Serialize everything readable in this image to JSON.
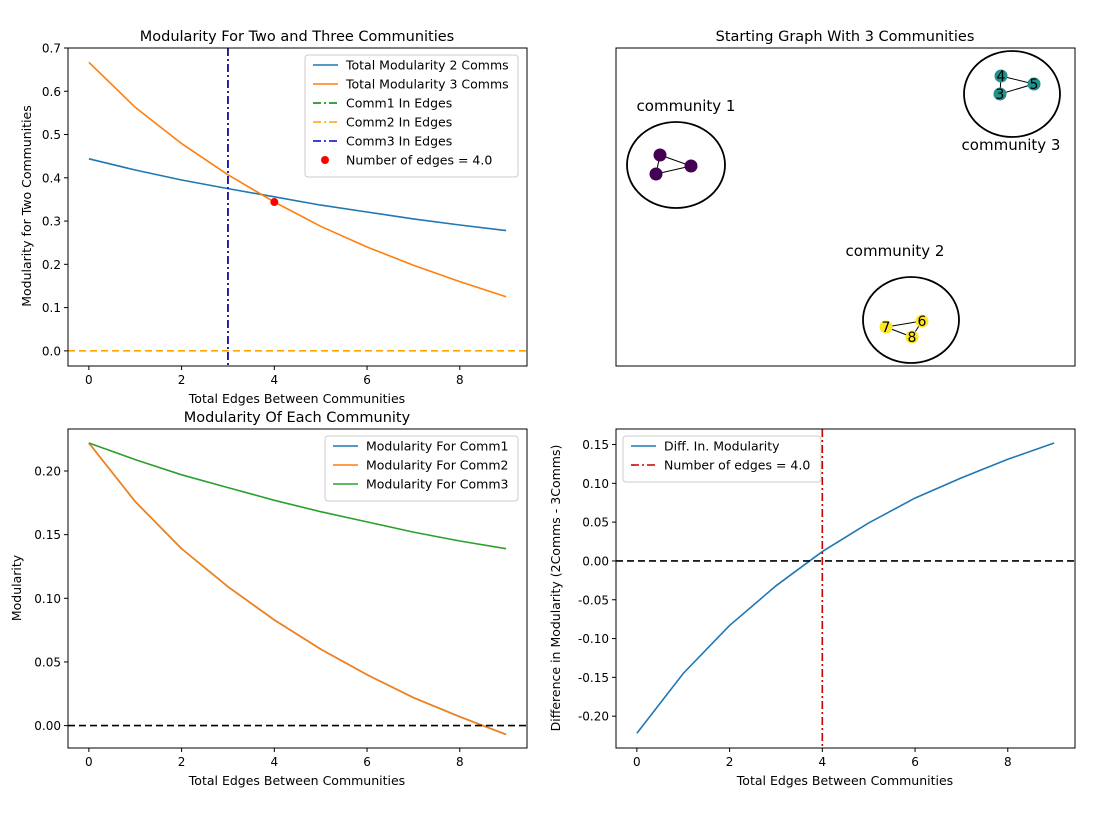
{
  "chart_data": [
    {
      "id": "p1",
      "type": "line",
      "title": "Modularity For Two and Three Communities",
      "xlabel": "Total Edges Between Communities",
      "ylabel": "Modularity for Two Communities",
      "xlim": [
        -0.45,
        9.45
      ],
      "ylim": [
        -0.035,
        0.7
      ],
      "xticks": [
        0,
        2,
        4,
        6,
        8
      ],
      "yticks": [
        0.0,
        0.1,
        0.2,
        0.3,
        0.4,
        0.5,
        0.6,
        0.7
      ],
      "ytick_decimals": 1,
      "legend_position": "upper-right",
      "series": [
        {
          "name": "Total Modularity 2 Comms",
          "color": "#1f77b4",
          "dash": "solid",
          "x": [
            0,
            1,
            2,
            3,
            4,
            5,
            6,
            7,
            8,
            9
          ],
          "y": [
            0.444,
            0.418,
            0.395,
            0.375,
            0.356,
            0.337,
            0.321,
            0.305,
            0.291,
            0.278
          ]
        },
        {
          "name": "Total Modularity 3 Comms",
          "color": "#ff7f0e",
          "dash": "solid",
          "x": [
            0,
            1,
            2,
            3,
            4,
            5,
            6,
            7,
            8,
            9
          ],
          "y": [
            0.667,
            0.563,
            0.479,
            0.407,
            0.344,
            0.288,
            0.24,
            0.198,
            0.16,
            0.125
          ]
        }
      ],
      "vlines": [
        {
          "name": "Comm1 In Edges",
          "color": "#008000",
          "dash": "dashdot",
          "x": 3
        },
        {
          "name": "Comm2 In Edges",
          "color": "#ffa500",
          "dash": "dashdot",
          "x": 3
        },
        {
          "name": "Comm3 In Edges",
          "color": "#0000cd",
          "dash": "dashdot",
          "x": 3
        }
      ],
      "hlines": [
        {
          "color": "#ffa500",
          "dash": "dashed",
          "y": 0.0
        }
      ],
      "points": [
        {
          "name": "Number of edges = 4.0",
          "color": "#ff0000",
          "x": 4,
          "y": 0.344
        }
      ]
    },
    {
      "id": "p2",
      "type": "network",
      "title": "Starting Graph With 3 Communities",
      "labels": [
        {
          "text": "community 1"
        },
        {
          "text": "community 3"
        },
        {
          "text": "community 2"
        }
      ],
      "communities": [
        {
          "color": "#440154",
          "nodes": [
            "",
            "",
            ""
          ]
        },
        {
          "color": "#21918c",
          "nodes": [
            "4",
            "5",
            "3"
          ]
        },
        {
          "color": "#fde725",
          "nodes": [
            "6",
            "7",
            "8"
          ]
        }
      ]
    },
    {
      "id": "p3",
      "type": "line",
      "title": "Modularity Of Each Community",
      "xlabel": "Total Edges Between Communities",
      "ylabel": "Modularity",
      "xlim": [
        -0.45,
        9.45
      ],
      "ylim": [
        -0.0176,
        0.233
      ],
      "xticks": [
        0,
        2,
        4,
        6,
        8
      ],
      "yticks": [
        0.0,
        0.05,
        0.1,
        0.15,
        0.2
      ],
      "ytick_decimals": 2,
      "legend_position": "upper-right",
      "series": [
        {
          "name": "Modularity For Comm1",
          "color": "#1f77b4",
          "dash": "solid",
          "x": [
            0,
            1,
            2,
            3,
            4,
            5,
            6,
            7,
            8,
            9
          ],
          "y": [
            0.222,
            0.176,
            0.139,
            0.109,
            0.083,
            0.06,
            0.04,
            0.022,
            0.007,
            -0.007
          ]
        },
        {
          "name": "Modularity For Comm2",
          "color": "#ff7f0e",
          "dash": "solid",
          "x": [
            0,
            1,
            2,
            3,
            4,
            5,
            6,
            7,
            8,
            9
          ],
          "y": [
            0.222,
            0.176,
            0.139,
            0.109,
            0.083,
            0.06,
            0.04,
            0.022,
            0.007,
            -0.007
          ]
        },
        {
          "name": "Modularity For Comm3",
          "color": "#2ca02c",
          "dash": "solid",
          "x": [
            0,
            1,
            2,
            3,
            4,
            5,
            6,
            7,
            8,
            9
          ],
          "y": [
            0.222,
            0.209,
            0.197,
            0.187,
            0.177,
            0.168,
            0.16,
            0.152,
            0.145,
            0.139
          ]
        }
      ],
      "vlines": [],
      "hlines": [
        {
          "color": "#000000",
          "dash": "dashed",
          "y": 0.0
        }
      ],
      "points": []
    },
    {
      "id": "p4",
      "type": "line",
      "title": "",
      "xlabel": "Total Edges Between Communities",
      "ylabel": "Difference in Modularity (2Comms - 3Comms)",
      "xlim": [
        -0.45,
        9.45
      ],
      "ylim": [
        -0.241,
        0.17
      ],
      "xticks": [
        0,
        2,
        4,
        6,
        8
      ],
      "yticks": [
        -0.2,
        -0.15,
        -0.1,
        -0.05,
        0.0,
        0.05,
        0.1,
        0.15
      ],
      "ytick_decimals": 2,
      "legend_position": "upper-left",
      "series": [
        {
          "name": "Diff. In. Modularity",
          "color": "#1f77b4",
          "dash": "solid",
          "x": [
            0,
            1,
            2,
            3,
            4,
            5,
            6,
            7,
            8,
            9
          ],
          "y": [
            -0.222,
            -0.145,
            -0.083,
            -0.032,
            0.012,
            0.049,
            0.081,
            0.107,
            0.131,
            0.152
          ]
        }
      ],
      "vlines": [
        {
          "name": "Number of edges = 4.0",
          "color": "#cc0000",
          "dash": "dashdot",
          "x": 4
        }
      ],
      "hlines": [
        {
          "color": "#000000",
          "dash": "dashed",
          "y": 0.0
        }
      ],
      "points": []
    }
  ]
}
